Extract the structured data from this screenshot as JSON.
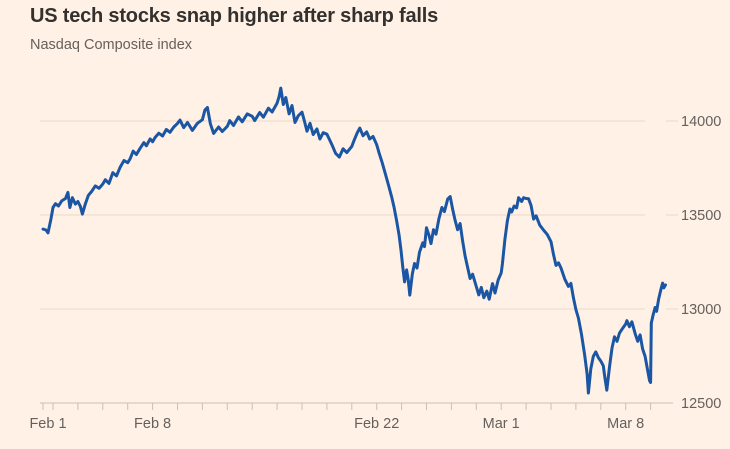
{
  "title": "US tech stocks snap higher after sharp falls",
  "subtitle": "Nasdaq Composite index",
  "colors": {
    "background": "#FFF1E5",
    "title_text": "#33302E",
    "subtitle_text": "#66605C",
    "axis_text": "#66605C",
    "gridline": "#e9d9c9",
    "axis_line": "#cdbeae",
    "series_line": "#1a56a4"
  },
  "chart_data": {
    "type": "line",
    "title": "US tech stocks snap higher after sharp falls",
    "subtitle": "Nasdaq Composite index",
    "series_name": "Nasdaq Composite index",
    "legend": "none",
    "grid": true,
    "x_unit": "trading sessions (t: 0 = Feb 1 partial session, each +1 = one session, 25 = end of Mar 9 session)",
    "y_axis": {
      "side": "right",
      "ticks": [
        12500,
        13000,
        13500,
        14000
      ],
      "tick_labels": [
        "12500",
        "13000",
        "13500",
        "14000"
      ],
      "range": [
        12500,
        14250
      ]
    },
    "x_axis": {
      "labels": [
        {
          "text": "Feb 1",
          "t": 0.2
        },
        {
          "text": "Feb 8",
          "t": 4.4
        },
        {
          "text": "Feb 22",
          "t": 13.4
        },
        {
          "text": "Mar 1",
          "t": 18.4
        },
        {
          "text": "Mar 8",
          "t": 23.4
        }
      ],
      "session_tick_positions": [
        0,
        0.4,
        1.4,
        2.4,
        3.4,
        4.4,
        5.4,
        6.4,
        7.4,
        8.4,
        9.4,
        10.4,
        11.4,
        12.4,
        13.4,
        14.4,
        15.4,
        16.4,
        17.4,
        18.4,
        19.4,
        20.4,
        21.4,
        22.4,
        23.4,
        24.4
      ]
    },
    "points": [
      [
        0,
        13425
      ],
      [
        0.12,
        13420
      ],
      [
        0.2,
        13405
      ],
      [
        0.32,
        13480
      ],
      [
        0.4,
        13540
      ],
      [
        0.5,
        13560
      ],
      [
        0.62,
        13548
      ],
      [
        0.75,
        13575
      ],
      [
        0.9,
        13588
      ],
      [
        1.0,
        13620
      ],
      [
        1.08,
        13540
      ],
      [
        1.18,
        13592
      ],
      [
        1.3,
        13558
      ],
      [
        1.4,
        13572
      ],
      [
        1.5,
        13545
      ],
      [
        1.58,
        13505
      ],
      [
        1.7,
        13560
      ],
      [
        1.82,
        13605
      ],
      [
        1.95,
        13625
      ],
      [
        2.1,
        13655
      ],
      [
        2.25,
        13642
      ],
      [
        2.4,
        13665
      ],
      [
        2.5,
        13688
      ],
      [
        2.65,
        13668
      ],
      [
        2.8,
        13725
      ],
      [
        2.95,
        13708
      ],
      [
        3.1,
        13755
      ],
      [
        3.25,
        13790
      ],
      [
        3.4,
        13778
      ],
      [
        3.5,
        13800
      ],
      [
        3.62,
        13840
      ],
      [
        3.75,
        13822
      ],
      [
        3.9,
        13855
      ],
      [
        4.05,
        13885
      ],
      [
        4.15,
        13868
      ],
      [
        4.3,
        13905
      ],
      [
        4.4,
        13890
      ],
      [
        4.5,
        13912
      ],
      [
        4.65,
        13935
      ],
      [
        4.8,
        13920
      ],
      [
        4.95,
        13955
      ],
      [
        5.1,
        13940
      ],
      [
        5.25,
        13968
      ],
      [
        5.4,
        13987
      ],
      [
        5.5,
        14005
      ],
      [
        5.65,
        13965
      ],
      [
        5.8,
        13992
      ],
      [
        6.0,
        13950
      ],
      [
        6.2,
        13988
      ],
      [
        6.4,
        14007
      ],
      [
        6.5,
        14058
      ],
      [
        6.6,
        14072
      ],
      [
        6.72,
        13985
      ],
      [
        6.85,
        13934
      ],
      [
        7.05,
        13968
      ],
      [
        7.2,
        13944
      ],
      [
        7.4,
        13972
      ],
      [
        7.5,
        14002
      ],
      [
        7.65,
        13976
      ],
      [
        7.85,
        14022
      ],
      [
        8.0,
        13996
      ],
      [
        8.2,
        14038
      ],
      [
        8.4,
        14025
      ],
      [
        8.5,
        14002
      ],
      [
        8.7,
        14045
      ],
      [
        8.85,
        14020
      ],
      [
        9.05,
        14068
      ],
      [
        9.2,
        14048
      ],
      [
        9.4,
        14095
      ],
      [
        9.48,
        14130
      ],
      [
        9.55,
        14175
      ],
      [
        9.65,
        14088
      ],
      [
        9.75,
        14125
      ],
      [
        9.88,
        14038
      ],
      [
        10.0,
        14082
      ],
      [
        10.12,
        13992
      ],
      [
        10.25,
        14028
      ],
      [
        10.4,
        14047
      ],
      [
        10.5,
        13998
      ],
      [
        10.6,
        13946
      ],
      [
        10.72,
        13988
      ],
      [
        10.85,
        13928
      ],
      [
        11.0,
        13958
      ],
      [
        11.12,
        13904
      ],
      [
        11.25,
        13938
      ],
      [
        11.4,
        13930
      ],
      [
        11.5,
        13902
      ],
      [
        11.62,
        13868
      ],
      [
        11.75,
        13828
      ],
      [
        11.9,
        13808
      ],
      [
        12.05,
        13852
      ],
      [
        12.2,
        13832
      ],
      [
        12.4,
        13865
      ],
      [
        12.5,
        13900
      ],
      [
        12.62,
        13938
      ],
      [
        12.72,
        13962
      ],
      [
        12.85,
        13922
      ],
      [
        13.0,
        13942
      ],
      [
        13.12,
        13904
      ],
      [
        13.25,
        13918
      ],
      [
        13.4,
        13874
      ],
      [
        13.5,
        13828
      ],
      [
        13.62,
        13778
      ],
      [
        13.75,
        13718
      ],
      [
        13.88,
        13655
      ],
      [
        14.0,
        13598
      ],
      [
        14.1,
        13540
      ],
      [
        14.2,
        13470
      ],
      [
        14.3,
        13392
      ],
      [
        14.38,
        13308
      ],
      [
        14.45,
        13222
      ],
      [
        14.52,
        13144
      ],
      [
        14.6,
        13208
      ],
      [
        14.67,
        13152
      ],
      [
        14.73,
        13074
      ],
      [
        14.83,
        13185
      ],
      [
        14.92,
        13242
      ],
      [
        15.02,
        13218
      ],
      [
        15.12,
        13302
      ],
      [
        15.25,
        13352
      ],
      [
        15.32,
        13332
      ],
      [
        15.4,
        13432
      ],
      [
        15.5,
        13392
      ],
      [
        15.58,
        13348
      ],
      [
        15.68,
        13422
      ],
      [
        15.78,
        13398
      ],
      [
        15.9,
        13480
      ],
      [
        16.02,
        13540
      ],
      [
        16.12,
        13518
      ],
      [
        16.25,
        13585
      ],
      [
        16.35,
        13598
      ],
      [
        16.45,
        13532
      ],
      [
        16.55,
        13472
      ],
      [
        16.65,
        13422
      ],
      [
        16.75,
        13455
      ],
      [
        16.85,
        13362
      ],
      [
        16.95,
        13282
      ],
      [
        17.05,
        13222
      ],
      [
        17.15,
        13162
      ],
      [
        17.25,
        13185
      ],
      [
        17.4,
        13119
      ],
      [
        17.5,
        13075
      ],
      [
        17.6,
        13115
      ],
      [
        17.7,
        13060
      ],
      [
        17.82,
        13095
      ],
      [
        17.92,
        13052
      ],
      [
        18.05,
        13135
      ],
      [
        18.15,
        13085
      ],
      [
        18.28,
        13155
      ],
      [
        18.4,
        13192
      ],
      [
        18.45,
        13240
      ],
      [
        18.55,
        13370
      ],
      [
        18.65,
        13470
      ],
      [
        18.75,
        13532
      ],
      [
        18.82,
        13516
      ],
      [
        18.92,
        13548
      ],
      [
        19.02,
        13538
      ],
      [
        19.1,
        13592
      ],
      [
        19.22,
        13572
      ],
      [
        19.3,
        13592
      ],
      [
        19.4,
        13588
      ],
      [
        19.5,
        13586
      ],
      [
        19.6,
        13550
      ],
      [
        19.7,
        13478
      ],
      [
        19.8,
        13496
      ],
      [
        19.95,
        13446
      ],
      [
        20.1,
        13420
      ],
      [
        20.25,
        13396
      ],
      [
        20.4,
        13358
      ],
      [
        20.5,
        13290
      ],
      [
        20.6,
        13232
      ],
      [
        20.7,
        13246
      ],
      [
        20.8,
        13218
      ],
      [
        20.95,
        13160
      ],
      [
        21.1,
        13120
      ],
      [
        21.2,
        13136
      ],
      [
        21.3,
        13060
      ],
      [
        21.4,
        12997
      ],
      [
        21.5,
        12952
      ],
      [
        21.62,
        12868
      ],
      [
        21.75,
        12758
      ],
      [
        21.85,
        12655
      ],
      [
        21.9,
        12553
      ],
      [
        22.0,
        12682
      ],
      [
        22.1,
        12748
      ],
      [
        22.2,
        12772
      ],
      [
        22.3,
        12742
      ],
      [
        22.4,
        12723
      ],
      [
        22.5,
        12698
      ],
      [
        22.56,
        12638
      ],
      [
        22.64,
        12568
      ],
      [
        22.75,
        12692
      ],
      [
        22.85,
        12792
      ],
      [
        22.95,
        12852
      ],
      [
        23.05,
        12828
      ],
      [
        23.15,
        12872
      ],
      [
        23.28,
        12898
      ],
      [
        23.4,
        12920
      ],
      [
        23.45,
        12938
      ],
      [
        23.55,
        12906
      ],
      [
        23.65,
        12932
      ],
      [
        23.78,
        12868
      ],
      [
        23.88,
        12828
      ],
      [
        23.98,
        12862
      ],
      [
        24.08,
        12788
      ],
      [
        24.18,
        12748
      ],
      [
        24.28,
        12675
      ],
      [
        24.36,
        12618
      ],
      [
        24.4,
        12609
      ],
      [
        24.43,
        12925
      ],
      [
        24.5,
        12968
      ],
      [
        24.58,
        13008
      ],
      [
        24.64,
        12988
      ],
      [
        24.72,
        13052
      ],
      [
        24.82,
        13108
      ],
      [
        24.88,
        13138
      ],
      [
        24.93,
        13112
      ],
      [
        25.0,
        13128
      ]
    ]
  }
}
